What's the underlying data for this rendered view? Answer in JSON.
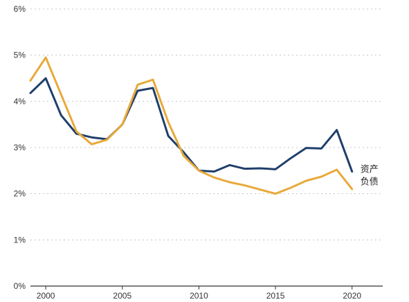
{
  "chart_data": {
    "type": "line",
    "title": "",
    "xlabel": "",
    "ylabel": "",
    "x": [
      1999,
      2000,
      2001,
      2002,
      2003,
      2004,
      2005,
      2006,
      2007,
      2008,
      2009,
      2010,
      2011,
      2012,
      2013,
      2014,
      2015,
      2016,
      2017,
      2018,
      2019,
      2020
    ],
    "xlim": [
      1999,
      2022
    ],
    "ylim": [
      0,
      6
    ],
    "x_ticks": [
      2000,
      2005,
      2010,
      2015,
      2020
    ],
    "x_tick_labels": [
      "2000",
      "2005",
      "2010",
      "2015",
      "2020"
    ],
    "y_ticks": [
      0,
      1,
      2,
      3,
      4,
      5,
      6
    ],
    "y_tick_labels": [
      "0%",
      "1%",
      "2%",
      "3%",
      "4%",
      "5%",
      "6%"
    ],
    "grid": true,
    "legend": "inline labels at line ends",
    "series": [
      {
        "name": "资产",
        "color": "#1f3f6b",
        "values": [
          4.18,
          4.5,
          3.7,
          3.3,
          3.22,
          3.18,
          3.5,
          4.23,
          4.29,
          3.25,
          2.9,
          2.5,
          2.48,
          2.62,
          2.54,
          2.55,
          2.53,
          2.77,
          2.99,
          2.98,
          3.38,
          2.48
        ]
      },
      {
        "name": "负债",
        "color": "#e8a93a",
        "values": [
          4.45,
          4.95,
          4.15,
          3.35,
          3.07,
          3.17,
          3.5,
          4.36,
          4.47,
          3.55,
          2.82,
          2.5,
          2.35,
          2.25,
          2.18,
          2.09,
          2.0,
          2.13,
          2.28,
          2.37,
          2.52,
          2.1
        ]
      }
    ]
  }
}
